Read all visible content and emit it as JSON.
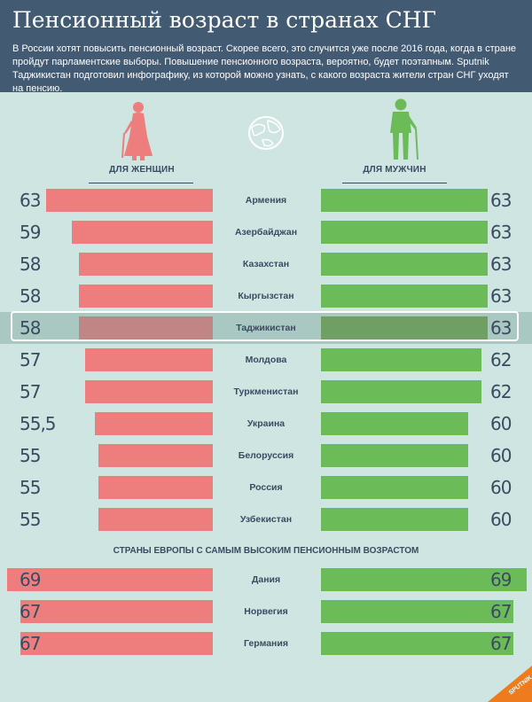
{
  "header": {
    "title": "Пенсионный возраст в странах СНГ",
    "intro": "В России хотят повысить пенсионный возраст. Скорее всего, это случится уже после 2016 года, когда в стране пройдут парламентские выборы. Повышение пенсионного возраста, вероятно, будет поэтапным. Sputnik Таджикистан подготовил инфографику, из которой можно узнать, с какого возраста жители стран СНГ уходят на пенсию."
  },
  "columns": {
    "women_label": "ДЛЯ ЖЕНЩИН",
    "men_label": "ДЛЯ МУЖЧИН"
  },
  "icons": {
    "women": "elderly-woman-icon",
    "men": "elderly-man-icon",
    "globe": "globe-icon",
    "logo": "sputnik-logo"
  },
  "colors": {
    "women": "#ee7e7e",
    "men": "#6cbb59",
    "background": "#cfe5e1",
    "header": "#435a73",
    "text": "#3a4b61"
  },
  "logo_text": "SPUTNIK",
  "chart_data": [
    {
      "type": "bar",
      "orientation": "horizontal-butterfly",
      "categories": [
        "Армения",
        "Азербайджан",
        "Казахстан",
        "Кыргызстан",
        "Таджикистан",
        "Молдова",
        "Туркменистан",
        "Украина",
        "Белоруссия",
        "Россия",
        "Узбекистан"
      ],
      "labels_women": [
        "63",
        "59",
        "58",
        "58",
        "58",
        "57",
        "57",
        "55,5",
        "55",
        "55",
        "55"
      ],
      "labels_men": [
        "63",
        "63",
        "63",
        "63",
        "63",
        "62",
        "62",
        "60",
        "60",
        "60",
        "60"
      ],
      "series": [
        {
          "name": "ДЛЯ ЖЕНЩИН",
          "values": [
            63,
            59,
            58,
            58,
            58,
            57,
            57,
            55.5,
            55,
            55,
            55
          ]
        },
        {
          "name": "ДЛЯ МУЖЧИН",
          "values": [
            63,
            63,
            63,
            63,
            63,
            62,
            62,
            60,
            60,
            60,
            60
          ]
        }
      ],
      "highlighted": "Таджикистан"
    },
    {
      "type": "bar",
      "orientation": "horizontal-butterfly",
      "title": "СТРАНЫ ЕВРОПЫ С САМЫМ ВЫСОКИМ ПЕНСИОННЫМ ВОЗРАСТОМ",
      "categories": [
        "Дания",
        "Норвегия",
        "Германия"
      ],
      "labels_women": [
        "69",
        "67",
        "67"
      ],
      "labels_men": [
        "69",
        "67",
        "67"
      ],
      "series": [
        {
          "name": "ДЛЯ ЖЕНЩИН",
          "values": [
            69,
            67,
            67
          ]
        },
        {
          "name": "ДЛЯ МУЖЧИН",
          "values": [
            69,
            67,
            67
          ]
        }
      ]
    }
  ]
}
